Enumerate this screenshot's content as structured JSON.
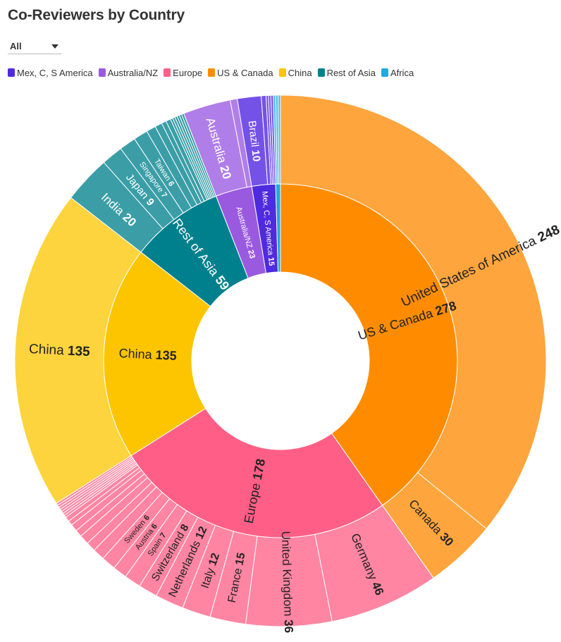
{
  "title": "Co-Reviewers by Country",
  "filter": {
    "selected": "All"
  },
  "legend": [
    {
      "name": "Mex, C, S America",
      "color": "#4f2bdf"
    },
    {
      "name": "Australia/NZ",
      "color": "#9a5ae0"
    },
    {
      "name": "Europe",
      "color": "#ff5f86"
    },
    {
      "name": "US & Canada",
      "color": "#ff8c00"
    },
    {
      "name": "China",
      "color": "#fdc500"
    },
    {
      "name": "Rest of Asia",
      "color": "#00808d"
    },
    {
      "name": "Africa",
      "color": "#21a8e0"
    }
  ],
  "chart_data": {
    "type": "sunburst",
    "title": "Co-Reviewers by Country",
    "regions": [
      {
        "name": "US & Canada",
        "value": 278,
        "color": "#ff8c00",
        "child_color": "#ffa53d",
        "children": [
          {
            "name": "United States of America",
            "value": 248
          },
          {
            "name": "Canada",
            "value": 30
          }
        ]
      },
      {
        "name": "Europe",
        "value": 178,
        "color": "#ff5f86",
        "child_color": "#ff85a2",
        "children": [
          {
            "name": "Germany",
            "value": 46
          },
          {
            "name": "United Kingdom",
            "value": 36
          },
          {
            "name": "France",
            "value": 15
          },
          {
            "name": "Italy",
            "value": 12
          },
          {
            "name": "Netherlands",
            "value": 12
          },
          {
            "name": "Switzerland",
            "value": 8
          },
          {
            "name": "Spain",
            "value": 7
          },
          {
            "name": "Austria",
            "value": 6
          },
          {
            "name": "Sweden",
            "value": 6
          },
          {
            "name": "",
            "value": 5
          },
          {
            "name": "",
            "value": 4
          },
          {
            "name": "",
            "value": 4
          },
          {
            "name": "",
            "value": 3
          },
          {
            "name": "",
            "value": 3
          },
          {
            "name": "",
            "value": 2
          },
          {
            "name": "",
            "value": 2
          },
          {
            "name": "",
            "value": 1
          },
          {
            "name": "",
            "value": 1
          },
          {
            "name": "",
            "value": 1
          },
          {
            "name": "",
            "value": 1
          },
          {
            "name": "",
            "value": 1
          },
          {
            "name": "",
            "value": 1
          },
          {
            "name": "",
            "value": 1
          }
        ]
      },
      {
        "name": "China",
        "value": 135,
        "color": "#fdc500",
        "child_color": "#fdd43e",
        "children": [
          {
            "name": "China",
            "value": 135
          }
        ]
      },
      {
        "name": "Rest of Asia",
        "value": 59,
        "color": "#00808d",
        "child_color": "#3b9ea7",
        "children": [
          {
            "name": "India",
            "value": 20
          },
          {
            "name": "Japan",
            "value": 9
          },
          {
            "name": "Singapore",
            "value": 7
          },
          {
            "name": "Taiwan",
            "value": 6
          },
          {
            "name": "",
            "value": 4
          },
          {
            "name": "",
            "value": 3
          },
          {
            "name": "",
            "value": 2
          },
          {
            "name": "",
            "value": 2
          },
          {
            "name": "",
            "value": 1
          },
          {
            "name": "",
            "value": 1
          },
          {
            "name": "",
            "value": 1
          },
          {
            "name": "",
            "value": 1
          },
          {
            "name": "",
            "value": 1
          },
          {
            "name": "",
            "value": 1
          }
        ]
      },
      {
        "name": "Australia/NZ",
        "value": 23,
        "color": "#9a5ae0",
        "child_color": "#b07ee8",
        "children": [
          {
            "name": "Australia",
            "value": 20
          },
          {
            "name": "",
            "value": 3
          }
        ]
      },
      {
        "name": "Mex, C, S America",
        "value": 15,
        "color": "#4f2bdf",
        "child_color": "#7452e8",
        "children": [
          {
            "name": "Brazil",
            "value": 10
          },
          {
            "name": "",
            "value": 2
          },
          {
            "name": "",
            "value": 1
          },
          {
            "name": "",
            "value": 1
          },
          {
            "name": "",
            "value": 1
          }
        ]
      },
      {
        "name": "Africa",
        "value": 3,
        "color": "#21a8e0",
        "child_color": "#4dbbe8",
        "children": [
          {
            "name": "",
            "value": 1
          },
          {
            "name": "",
            "value": 1
          },
          {
            "name": "",
            "value": 1
          }
        ]
      }
    ]
  }
}
